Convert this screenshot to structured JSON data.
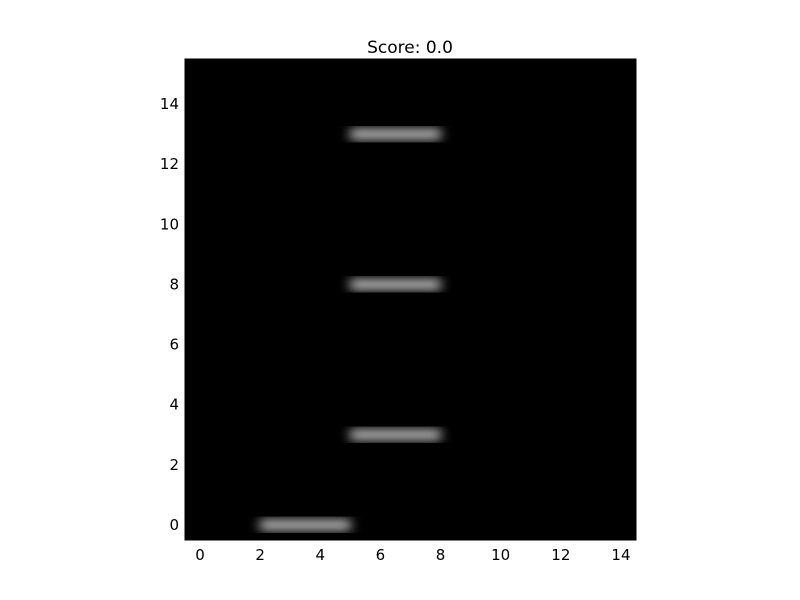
{
  "title": "Score: 0.0",
  "colors": {
    "background": "#000000",
    "block": "#ffffff",
    "axis": "#000000"
  },
  "chart_data": {
    "type": "heatmap",
    "colormap": "gray",
    "interpolation": "bicubic",
    "xlim": [
      -0.5,
      14.5
    ],
    "ylim": [
      15.5,
      -0.5
    ],
    "x_ticks": [
      0,
      2,
      4,
      6,
      8,
      10,
      12,
      14
    ],
    "y_ticks": [
      0,
      2,
      4,
      6,
      8,
      10,
      12,
      14
    ],
    "x_tick_labels": [
      "0",
      "2",
      "4",
      "6",
      "8",
      "10",
      "12",
      "14"
    ],
    "y_tick_labels": [
      "0",
      "2",
      "4",
      "6",
      "8",
      "10",
      "12",
      "14"
    ],
    "grid": false,
    "bright_blocks": [
      {
        "name": "player-paddle",
        "row": 0,
        "col_start": 2,
        "col_end": 5,
        "value": 1.0
      },
      {
        "name": "platform-1",
        "row": 3,
        "col_start": 5,
        "col_end": 8,
        "value": 1.0
      },
      {
        "name": "platform-2",
        "row": 8,
        "col_start": 5,
        "col_end": 8,
        "value": 1.0
      },
      {
        "name": "platform-3",
        "row": 13,
        "col_start": 5,
        "col_end": 8,
        "value": 1.0
      }
    ]
  }
}
